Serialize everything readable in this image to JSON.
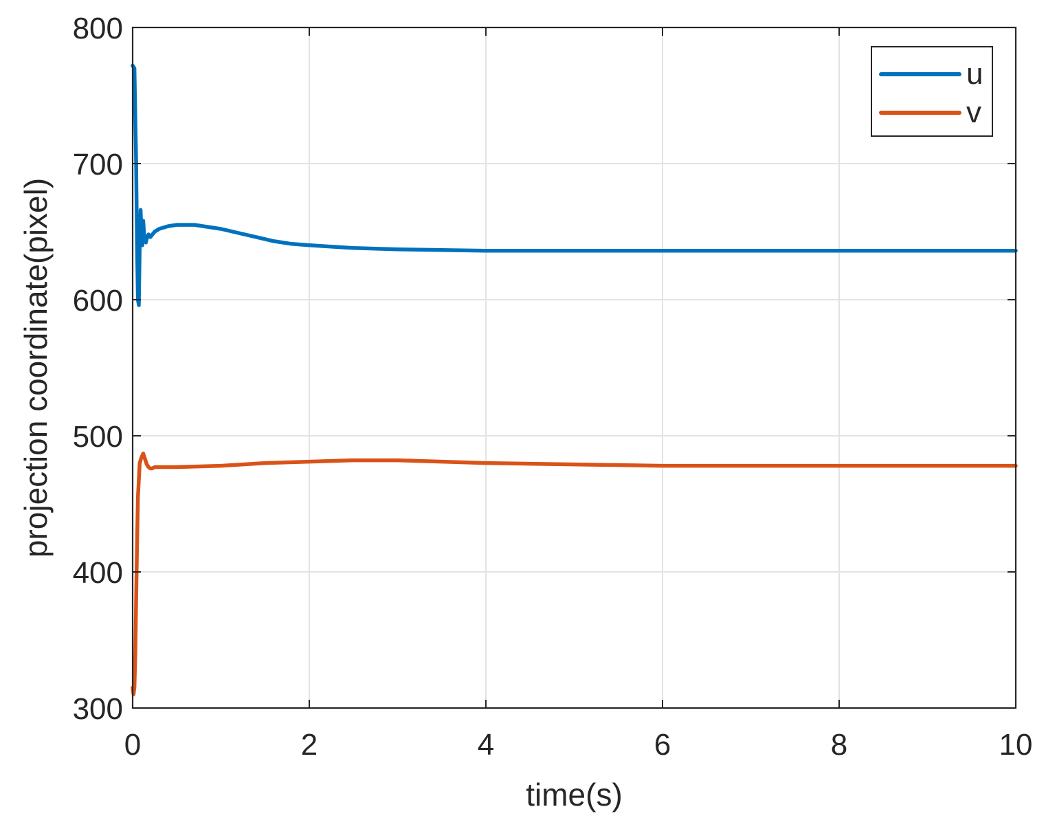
{
  "chart_data": {
    "type": "line",
    "xlabel": "time(s)",
    "ylabel": "projection coordinate(pixel)",
    "xlim": [
      0,
      10
    ],
    "ylim": [
      300,
      800
    ],
    "x_ticks": [
      "0",
      "2",
      "4",
      "6",
      "8",
      "10"
    ],
    "y_ticks": [
      "300",
      "400",
      "500",
      "600",
      "700",
      "800"
    ],
    "grid": true,
    "legend_position": "top-right",
    "series": [
      {
        "name": "u",
        "color": "#0072BD",
        "x": [
          0,
          0.02,
          0.04,
          0.05,
          0.06,
          0.07,
          0.08,
          0.09,
          0.1,
          0.11,
          0.12,
          0.13,
          0.14,
          0.15,
          0.16,
          0.18,
          0.2,
          0.25,
          0.3,
          0.4,
          0.5,
          0.6,
          0.7,
          0.8,
          1.0,
          1.2,
          1.4,
          1.6,
          1.8,
          2.0,
          2.5,
          3.0,
          4.0,
          5.0,
          6.0,
          7.0,
          8.0,
          9.0,
          10.0
        ],
        "y": [
          772,
          770,
          700,
          640,
          600,
          596,
          640,
          666,
          650,
          640,
          658,
          648,
          645,
          642,
          645,
          648,
          646,
          650,
          652,
          654,
          655,
          655,
          655,
          654,
          652,
          649,
          646,
          643,
          641,
          640,
          638,
          637,
          636,
          636,
          636,
          636,
          636,
          636,
          636
        ]
      },
      {
        "name": "v",
        "color": "#D95319",
        "x": [
          0,
          0.01,
          0.02,
          0.03,
          0.04,
          0.05,
          0.06,
          0.08,
          0.1,
          0.12,
          0.14,
          0.16,
          0.18,
          0.2,
          0.22,
          0.25,
          0.3,
          0.5,
          1.0,
          1.5,
          2.0,
          2.5,
          3.0,
          4.0,
          5.0,
          6.0,
          7.0,
          8.0,
          9.0,
          10.0
        ],
        "y": [
          315,
          310,
          315,
          340,
          380,
          420,
          455,
          480,
          484,
          487,
          483,
          479,
          477,
          476,
          476,
          477,
          477,
          477,
          478,
          480,
          481,
          482,
          482,
          480,
          479,
          478,
          478,
          478,
          478,
          478
        ]
      }
    ]
  }
}
